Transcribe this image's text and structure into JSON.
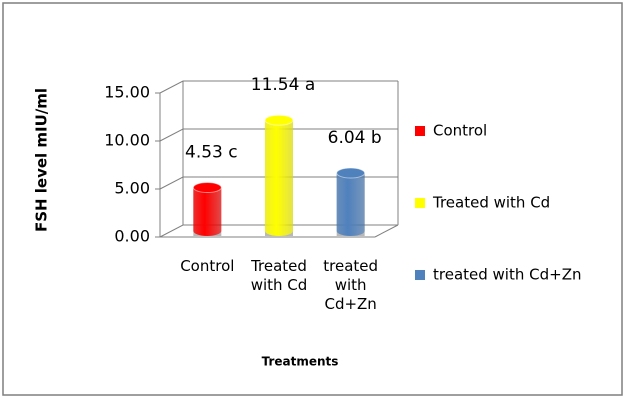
{
  "chart_data": {
    "type": "bar3d",
    "y_label": "FSH level mIU/ml",
    "x_label": "Treatments",
    "categories": [
      "Control",
      "Treated with Cd",
      "treated with Cd+Zn"
    ],
    "values": [
      4.53,
      11.54,
      6.04
    ],
    "value_labels": [
      "4.53 c",
      "11.54 a",
      "6.04 b"
    ],
    "colors": [
      "#ff0000",
      "#ffff00",
      "#4f81bd"
    ],
    "ylim": [
      0,
      15
    ],
    "yticks": [
      {
        "value": 0,
        "label": "0.00"
      },
      {
        "value": 5,
        "label": "5.00"
      },
      {
        "value": 10,
        "label": "10.00"
      },
      {
        "value": 15,
        "label": "15.00"
      }
    ],
    "grid": true,
    "legend": "right"
  }
}
